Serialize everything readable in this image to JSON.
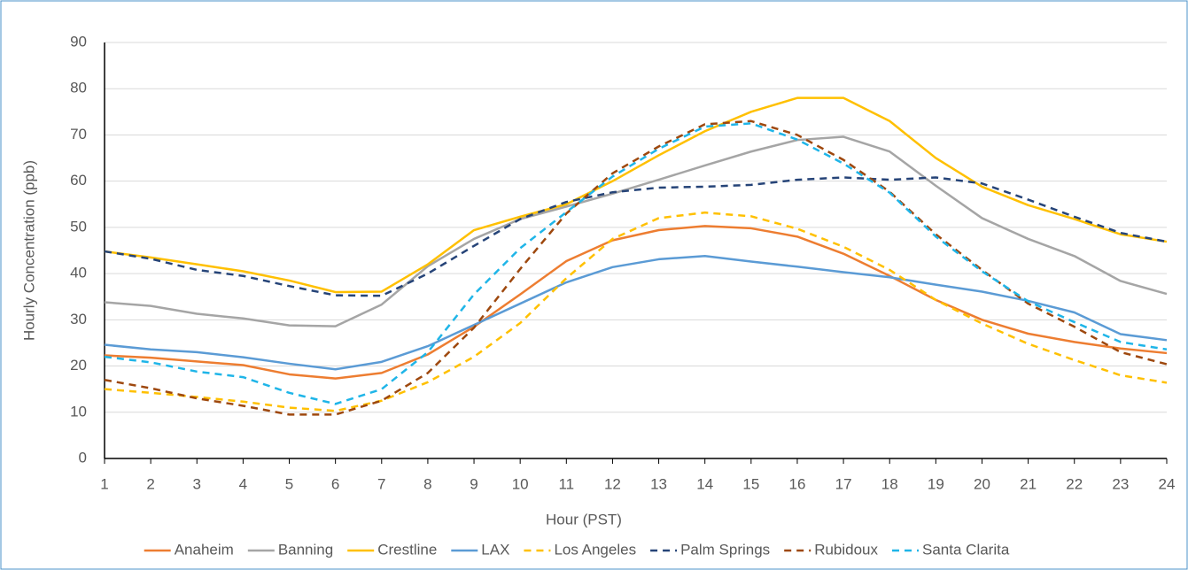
{
  "chart_data": {
    "type": "line",
    "xlabel": "Hour (PST)",
    "ylabel": "Hourly Concentration (ppb)",
    "x": [
      1,
      2,
      3,
      4,
      5,
      6,
      7,
      8,
      9,
      10,
      11,
      12,
      13,
      14,
      15,
      16,
      17,
      18,
      19,
      20,
      21,
      22,
      23,
      24
    ],
    "xlim": [
      1,
      24
    ],
    "xticks": [
      1,
      2,
      3,
      4,
      5,
      6,
      7,
      8,
      9,
      10,
      11,
      12,
      13,
      14,
      15,
      16,
      17,
      18,
      19,
      20,
      21,
      22,
      23,
      24
    ],
    "ylim": [
      0,
      90
    ],
    "yticks": [
      0,
      10,
      20,
      30,
      40,
      50,
      60,
      70,
      80,
      90
    ],
    "grid": true,
    "legend": "bottom",
    "series": [
      {
        "name": "Anaheim",
        "color": "#ED7D31",
        "style": "solid",
        "values": [
          22.3,
          21.8,
          21,
          20.2,
          18.2,
          17.3,
          18.5,
          22.5,
          28.5,
          35.5,
          42.7,
          47.2,
          49.4,
          50.3,
          49.8,
          48,
          44.3,
          39.5,
          34.3,
          30,
          27,
          25.2,
          23.8,
          22.8
        ]
      },
      {
        "name": "Banning",
        "color": "#A5A5A5",
        "style": "solid",
        "values": [
          33.8,
          33,
          31.3,
          30.3,
          28.8,
          28.6,
          33.3,
          41.6,
          47.5,
          51.8,
          54.5,
          57.3,
          60.3,
          63.4,
          66.4,
          68.9,
          69.6,
          66.4,
          59,
          52,
          47.5,
          43.8,
          38.4,
          35.6
        ]
      },
      {
        "name": "Crestline",
        "color": "#FFC000",
        "style": "solid",
        "values": [
          44.8,
          43.5,
          42,
          40.5,
          38.5,
          36,
          36.1,
          42,
          49.4,
          52.3,
          55,
          60,
          65.6,
          70.8,
          75,
          78,
          78,
          73,
          65,
          58.8,
          54.8,
          51.8,
          48.5,
          46.9
        ]
      },
      {
        "name": "LAX",
        "color": "#5B9BD5",
        "style": "solid",
        "values": [
          24.6,
          23.6,
          23,
          21.9,
          20.5,
          19.3,
          20.9,
          24.3,
          28.9,
          33.5,
          38.1,
          41.4,
          43.1,
          43.8,
          42.6,
          41.5,
          40.3,
          39.2,
          37.6,
          36.1,
          34.1,
          31.6,
          26.9,
          25.6
        ]
      },
      {
        "name": "Los Angeles",
        "color": "#FFC000",
        "style": "dashed",
        "values": [
          15,
          14.2,
          13.3,
          12.3,
          11,
          10.3,
          12.5,
          16.5,
          22,
          29.3,
          39,
          47.5,
          52,
          53.2,
          52.4,
          49.7,
          45.8,
          40.8,
          34.3,
          29.2,
          24.8,
          21.3,
          18,
          16.4
        ]
      },
      {
        "name": "Palm Springs",
        "color": "#264478",
        "style": "dashed",
        "values": [
          44.8,
          43.2,
          40.8,
          39.5,
          37.3,
          35.3,
          35.2,
          40,
          46,
          51.8,
          55.5,
          57.6,
          58.6,
          58.8,
          59.2,
          60.3,
          60.8,
          60.3,
          60.8,
          59.5,
          56,
          52.3,
          48.8,
          46.9
        ]
      },
      {
        "name": "Rubidoux",
        "color": "#9E480E",
        "style": "dashed",
        "values": [
          17,
          15.2,
          13,
          11.4,
          9.5,
          9.5,
          12.5,
          18.5,
          28.3,
          41,
          53,
          61.7,
          67.5,
          72.3,
          73,
          70,
          64.6,
          57.7,
          48.5,
          40.8,
          33.5,
          28.5,
          23,
          20.4
        ]
      },
      {
        "name": "Santa Clarita",
        "color": "#1FB5E8",
        "style": "dashed",
        "values": [
          22,
          20.8,
          18.8,
          17.6,
          14.2,
          11.8,
          15,
          23,
          35.5,
          45.5,
          53.3,
          61,
          67,
          71.8,
          72.5,
          69,
          63.8,
          57.5,
          48,
          40.5,
          34,
          29.5,
          25.2,
          23.6
        ]
      }
    ]
  }
}
